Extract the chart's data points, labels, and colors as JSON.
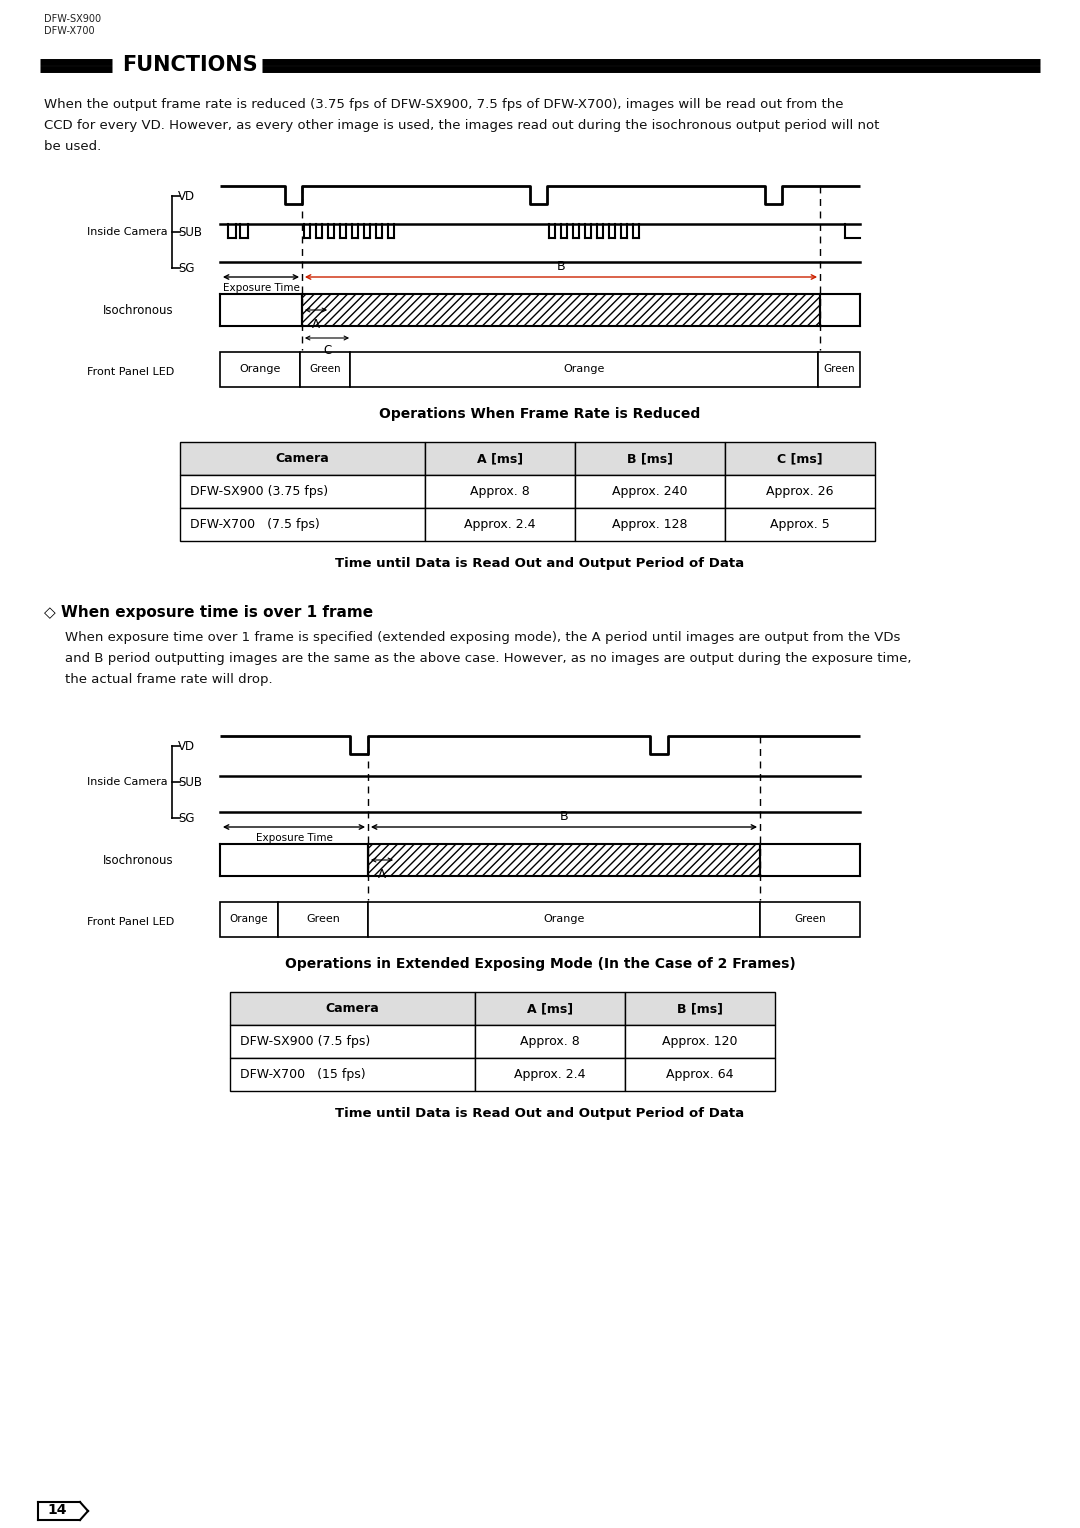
{
  "bg_color": "#ffffff",
  "page_number": "14",
  "header_line1": "DFW-SX900",
  "header_line2": "DFW-X700",
  "section_title": "FUNCTIONS",
  "para1": "When the output frame rate is reduced (3.75 fps of DFW-SX900, 7.5 fps of DFW-X700), images will be read out from the\nCCD for every VD. However, as every other image is used, the images read out during the isochronous output period will not\nbe used.",
  "diag1_title": "Operations When Frame Rate is Reduced",
  "table1_headers": [
    "Camera",
    "A [ms]",
    "B [ms]",
    "C [ms]"
  ],
  "table1_rows": [
    [
      "DFW-SX900 (3.75 fps)",
      "Approx. 8",
      "Approx. 240",
      "Approx. 26"
    ],
    [
      "DFW-X700   (7.5 fps)",
      "Approx. 2.4",
      "Approx. 128",
      "Approx. 5"
    ]
  ],
  "table1_caption": "Time until Data is Read Out and Output Period of Data",
  "section2_title": "◇ When exposure time is over 1 frame",
  "para2": "When exposure time over 1 frame is specified (extended exposing mode), the A period until images are output from the VDs\nand B period outputting images are the same as the above case. However, as no images are output during the exposure time,\nthe actual frame rate will drop.",
  "diag2_title": "Operations in Extended Exposing Mode (In the Case of 2 Frames)",
  "table2_headers": [
    "Camera",
    "A [ms]",
    "B [ms]"
  ],
  "table2_rows": [
    [
      "DFW-SX900 (7.5 fps)",
      "Approx. 8",
      "Approx. 120"
    ],
    [
      "DFW-X700   (15 fps)",
      "Approx. 2.4",
      "Approx. 64"
    ]
  ],
  "table2_caption": "Time until Data is Read Out and Output Period of Data"
}
